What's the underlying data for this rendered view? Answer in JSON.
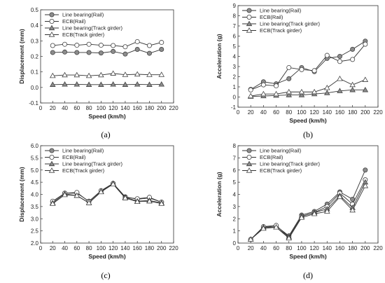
{
  "chart_data": [
    {
      "type": "line",
      "panel_label": "(a)",
      "xlabel": "Speed (km/h)",
      "ylabel": "Displacement (mm)",
      "xlim": [
        0,
        220
      ],
      "ylim": [
        -0.1,
        0.5
      ],
      "xticks": [
        0,
        20,
        40,
        60,
        80,
        100,
        120,
        140,
        160,
        180,
        200,
        220
      ],
      "xtick_labels": [
        "0",
        "20",
        "40",
        "60",
        "80",
        "100",
        "120",
        "140",
        "160",
        "180",
        "200",
        "220"
      ],
      "yticks": [
        -0.1,
        0.0,
        0.1,
        0.2,
        0.3,
        0.4,
        0.5
      ],
      "ytick_labels": [
        "-0.1",
        "0.0",
        "0.1",
        "0.2",
        "0.3",
        "0.4",
        "0.5"
      ],
      "legend_position": "top-left",
      "x": [
        20,
        40,
        60,
        80,
        100,
        120,
        140,
        160,
        180,
        200
      ],
      "series": [
        {
          "name": "Line bearing(Rail)",
          "marker": "circle-filled",
          "values": [
            0.225,
            0.228,
            0.225,
            0.225,
            0.222,
            0.232,
            0.215,
            0.245,
            0.22,
            0.245
          ]
        },
        {
          "name": "ECB(Rail)",
          "marker": "circle-open",
          "values": [
            0.27,
            0.278,
            0.272,
            0.278,
            0.272,
            0.27,
            0.262,
            0.295,
            0.27,
            0.29
          ]
        },
        {
          "name": "Line bearing(Track girder)",
          "marker": "triangle-filled",
          "values": [
            0.018,
            0.02,
            0.02,
            0.018,
            0.018,
            0.02,
            0.018,
            0.02,
            0.018,
            0.02
          ]
        },
        {
          "name": "ECB(Track girder)",
          "marker": "triangle-open",
          "values": [
            0.075,
            0.08,
            0.08,
            0.075,
            0.08,
            0.09,
            0.082,
            0.085,
            0.082,
            0.082
          ]
        }
      ]
    },
    {
      "type": "line",
      "panel_label": "(b)",
      "xlabel": "Speed (km/h)",
      "ylabel": "Acceleration (g)",
      "xlim": [
        0,
        220
      ],
      "ylim": [
        -1,
        9
      ],
      "xticks": [
        0,
        20,
        40,
        60,
        80,
        100,
        120,
        140,
        160,
        180,
        200,
        220
      ],
      "xtick_labels": [
        "0",
        "20",
        "40",
        "60",
        "80",
        "100",
        "120",
        "140",
        "160",
        "180",
        "200",
        "220"
      ],
      "yticks": [
        -1,
        0,
        1,
        2,
        3,
        4,
        5,
        6,
        7,
        8,
        9
      ],
      "ytick_labels": [
        "-1",
        "0",
        "1",
        "2",
        "3",
        "4",
        "5",
        "6",
        "7",
        "8",
        "9"
      ],
      "legend_position": "top-left",
      "x": [
        20,
        40,
        60,
        80,
        100,
        120,
        140,
        160,
        180,
        200
      ],
      "series": [
        {
          "name": "Line bearing(Rail)",
          "marker": "circle-filled",
          "values": [
            0.75,
            1.5,
            1.3,
            1.8,
            2.9,
            2.5,
            3.8,
            4.0,
            4.7,
            5.5
          ]
        },
        {
          "name": "ECB(Rail)",
          "marker": "circle-open",
          "values": [
            0.7,
            1.2,
            1.1,
            2.9,
            2.7,
            2.6,
            4.1,
            3.5,
            3.7,
            5.2
          ]
        },
        {
          "name": "Line bearing(Track girder)",
          "marker": "triangle-filled",
          "values": [
            0.05,
            0.1,
            0.15,
            0.2,
            0.2,
            0.3,
            0.4,
            0.6,
            0.7,
            0.7
          ]
        },
        {
          "name": "ECB(Track girder)",
          "marker": "triangle-open",
          "values": [
            0.1,
            0.3,
            0.3,
            0.5,
            0.5,
            0.5,
            0.9,
            1.8,
            1.2,
            1.7
          ]
        }
      ]
    },
    {
      "type": "line",
      "panel_label": "(c)",
      "xlabel": "Speed (km/h)",
      "ylabel": "Displacement (mm)",
      "xlim": [
        0,
        220
      ],
      "ylim": [
        2.0,
        6.0
      ],
      "xticks": [
        0,
        20,
        40,
        60,
        80,
        100,
        120,
        140,
        160,
        180,
        200,
        220
      ],
      "xtick_labels": [
        "0",
        "20",
        "40",
        "60",
        "80",
        "100",
        "120",
        "140",
        "160",
        "180",
        "200",
        "220"
      ],
      "yticks": [
        2.0,
        2.5,
        3.0,
        3.5,
        4.0,
        4.5,
        5.0,
        5.5,
        6.0
      ],
      "ytick_labels": [
        "2.0",
        "2.5",
        "3.0",
        "3.5",
        "4.0",
        "4.5",
        "5.0",
        "5.5",
        "6.0"
      ],
      "legend_position": "top-left",
      "x": [
        20,
        40,
        60,
        80,
        100,
        120,
        140,
        160,
        180,
        200
      ],
      "series": [
        {
          "name": "Line bearing(Rail)",
          "marker": "circle-filled",
          "values": [
            3.7,
            4.05,
            4.05,
            3.72,
            4.15,
            4.45,
            3.9,
            3.8,
            3.85,
            3.68
          ]
        },
        {
          "name": "ECB(Rail)",
          "marker": "circle-open",
          "values": [
            3.72,
            4.05,
            4.08,
            3.7,
            4.15,
            4.45,
            3.88,
            3.82,
            3.88,
            3.68
          ]
        },
        {
          "name": "Line bearing(Track girder)",
          "marker": "triangle-filled",
          "values": [
            3.65,
            4.02,
            3.95,
            3.65,
            4.12,
            4.45,
            3.88,
            3.72,
            3.75,
            3.65
          ]
        },
        {
          "name": "ECB(Track girder)",
          "marker": "triangle-open",
          "values": [
            3.62,
            3.98,
            3.95,
            3.65,
            4.1,
            4.42,
            3.85,
            3.7,
            3.72,
            3.62
          ]
        }
      ]
    },
    {
      "type": "line",
      "panel_label": "(d)",
      "xlabel": "Speed (km/h)",
      "ylabel": "Acceleration (g)",
      "xlim": [
        0,
        220
      ],
      "ylim": [
        0,
        8
      ],
      "xticks": [
        0,
        20,
        40,
        60,
        80,
        100,
        120,
        140,
        160,
        180,
        200,
        220
      ],
      "xtick_labels": [
        "0",
        "20",
        "40",
        "60",
        "80",
        "100",
        "120",
        "140",
        "160",
        "180",
        "200",
        "220"
      ],
      "yticks": [
        0,
        1,
        2,
        3,
        4,
        5,
        6,
        7,
        8
      ],
      "ytick_labels": [
        "0",
        "1",
        "2",
        "3",
        "4",
        "5",
        "6",
        "7",
        "8"
      ],
      "legend_position": "top-left",
      "x": [
        20,
        40,
        60,
        80,
        100,
        120,
        140,
        160,
        180,
        200
      ],
      "series": [
        {
          "name": "Line bearing(Rail)",
          "marker": "circle-filled",
          "values": [
            0.3,
            1.3,
            1.4,
            0.6,
            2.3,
            2.6,
            3.2,
            4.2,
            3.6,
            6.0
          ]
        },
        {
          "name": "ECB(Rail)",
          "marker": "circle-open",
          "values": [
            0.3,
            1.35,
            1.45,
            0.5,
            2.2,
            2.5,
            3.0,
            4.1,
            3.2,
            5.2
          ]
        },
        {
          "name": "Line bearing(Track girder)",
          "marker": "triangle-filled",
          "values": [
            0.3,
            1.3,
            1.3,
            0.5,
            2.2,
            2.5,
            2.8,
            3.9,
            2.9,
            5.0
          ]
        },
        {
          "name": "ECB(Track girder)",
          "marker": "triangle-open",
          "values": [
            0.3,
            1.2,
            1.3,
            0.4,
            2.1,
            2.4,
            2.6,
            3.8,
            2.7,
            4.7
          ]
        }
      ]
    }
  ]
}
